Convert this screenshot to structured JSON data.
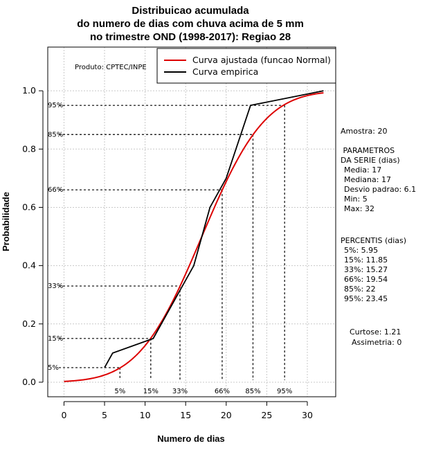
{
  "chart_data": {
    "type": "line",
    "title_lines": [
      "Distribuicao acumulada",
      "do numero de dias com chuva acima de 5 mm",
      "no trimestre OND (1998-2017): Regiao 28"
    ],
    "xlabel": "Numero de dias",
    "ylabel": "Probabilidade",
    "xlim": [
      -2,
      33.5
    ],
    "ylim": [
      -0.05,
      1.15
    ],
    "x_ticks": [
      0,
      5,
      10,
      15,
      20,
      25,
      30
    ],
    "x_tick_labels": [
      "0",
      "5",
      "10",
      "15",
      "20",
      "25",
      "30"
    ],
    "y_ticks": [
      0.0,
      0.2,
      0.4,
      0.6,
      0.8,
      1.0
    ],
    "y_tick_labels": [
      "0.0",
      "0.2",
      "0.4",
      "0.6",
      "0.8",
      "1.0"
    ],
    "grid": true,
    "producer_note": "Produto: CPTEC/INPE",
    "legend_position": "top-right",
    "series": [
      {
        "name": "Curva ajustada (funcao Normal)",
        "color": "#dd0000",
        "kind": "normal_cdf",
        "mean": 17,
        "sd": 6.1,
        "x_range": [
          0,
          32
        ]
      },
      {
        "name": "Curva empirica",
        "color": "#000000",
        "kind": "points",
        "x": [
          5,
          6,
          11,
          16,
          18,
          19,
          20,
          23,
          32
        ],
        "y": [
          0.05,
          0.1,
          0.15,
          0.4,
          0.6,
          0.65,
          0.7,
          0.95,
          1.0
        ]
      }
    ],
    "percentile_guides": [
      {
        "label": "5%",
        "p": 0.05,
        "x": 6.9
      },
      {
        "label": "15%",
        "p": 0.15,
        "x": 10.7
      },
      {
        "label": "33%",
        "p": 0.33,
        "x": 14.3
      },
      {
        "label": "66%",
        "p": 0.66,
        "x": 19.5
      },
      {
        "label": "85%",
        "p": 0.85,
        "x": 23.3
      },
      {
        "label": "95%",
        "p": 0.95,
        "x": 27.2
      }
    ],
    "side_info": {
      "amostra": "Amostra: 20",
      "params_title": [
        " PARAMETROS",
        "DA SERIE (dias)"
      ],
      "params": [
        "Media: 17",
        "Mediana: 17",
        "Desvio padrao: 6.1",
        "Min: 5",
        "Max: 32"
      ],
      "percentis_title": "PERCENTIS (dias)",
      "percentis": [
        "5%: 5.95",
        "15%: 11.85",
        "33%: 15.27",
        "66%: 19.54",
        "85%: 22",
        "95%: 23.45"
      ],
      "curtose": "Curtose: 1.21",
      "assimetria": "Assimetria: 0"
    }
  }
}
